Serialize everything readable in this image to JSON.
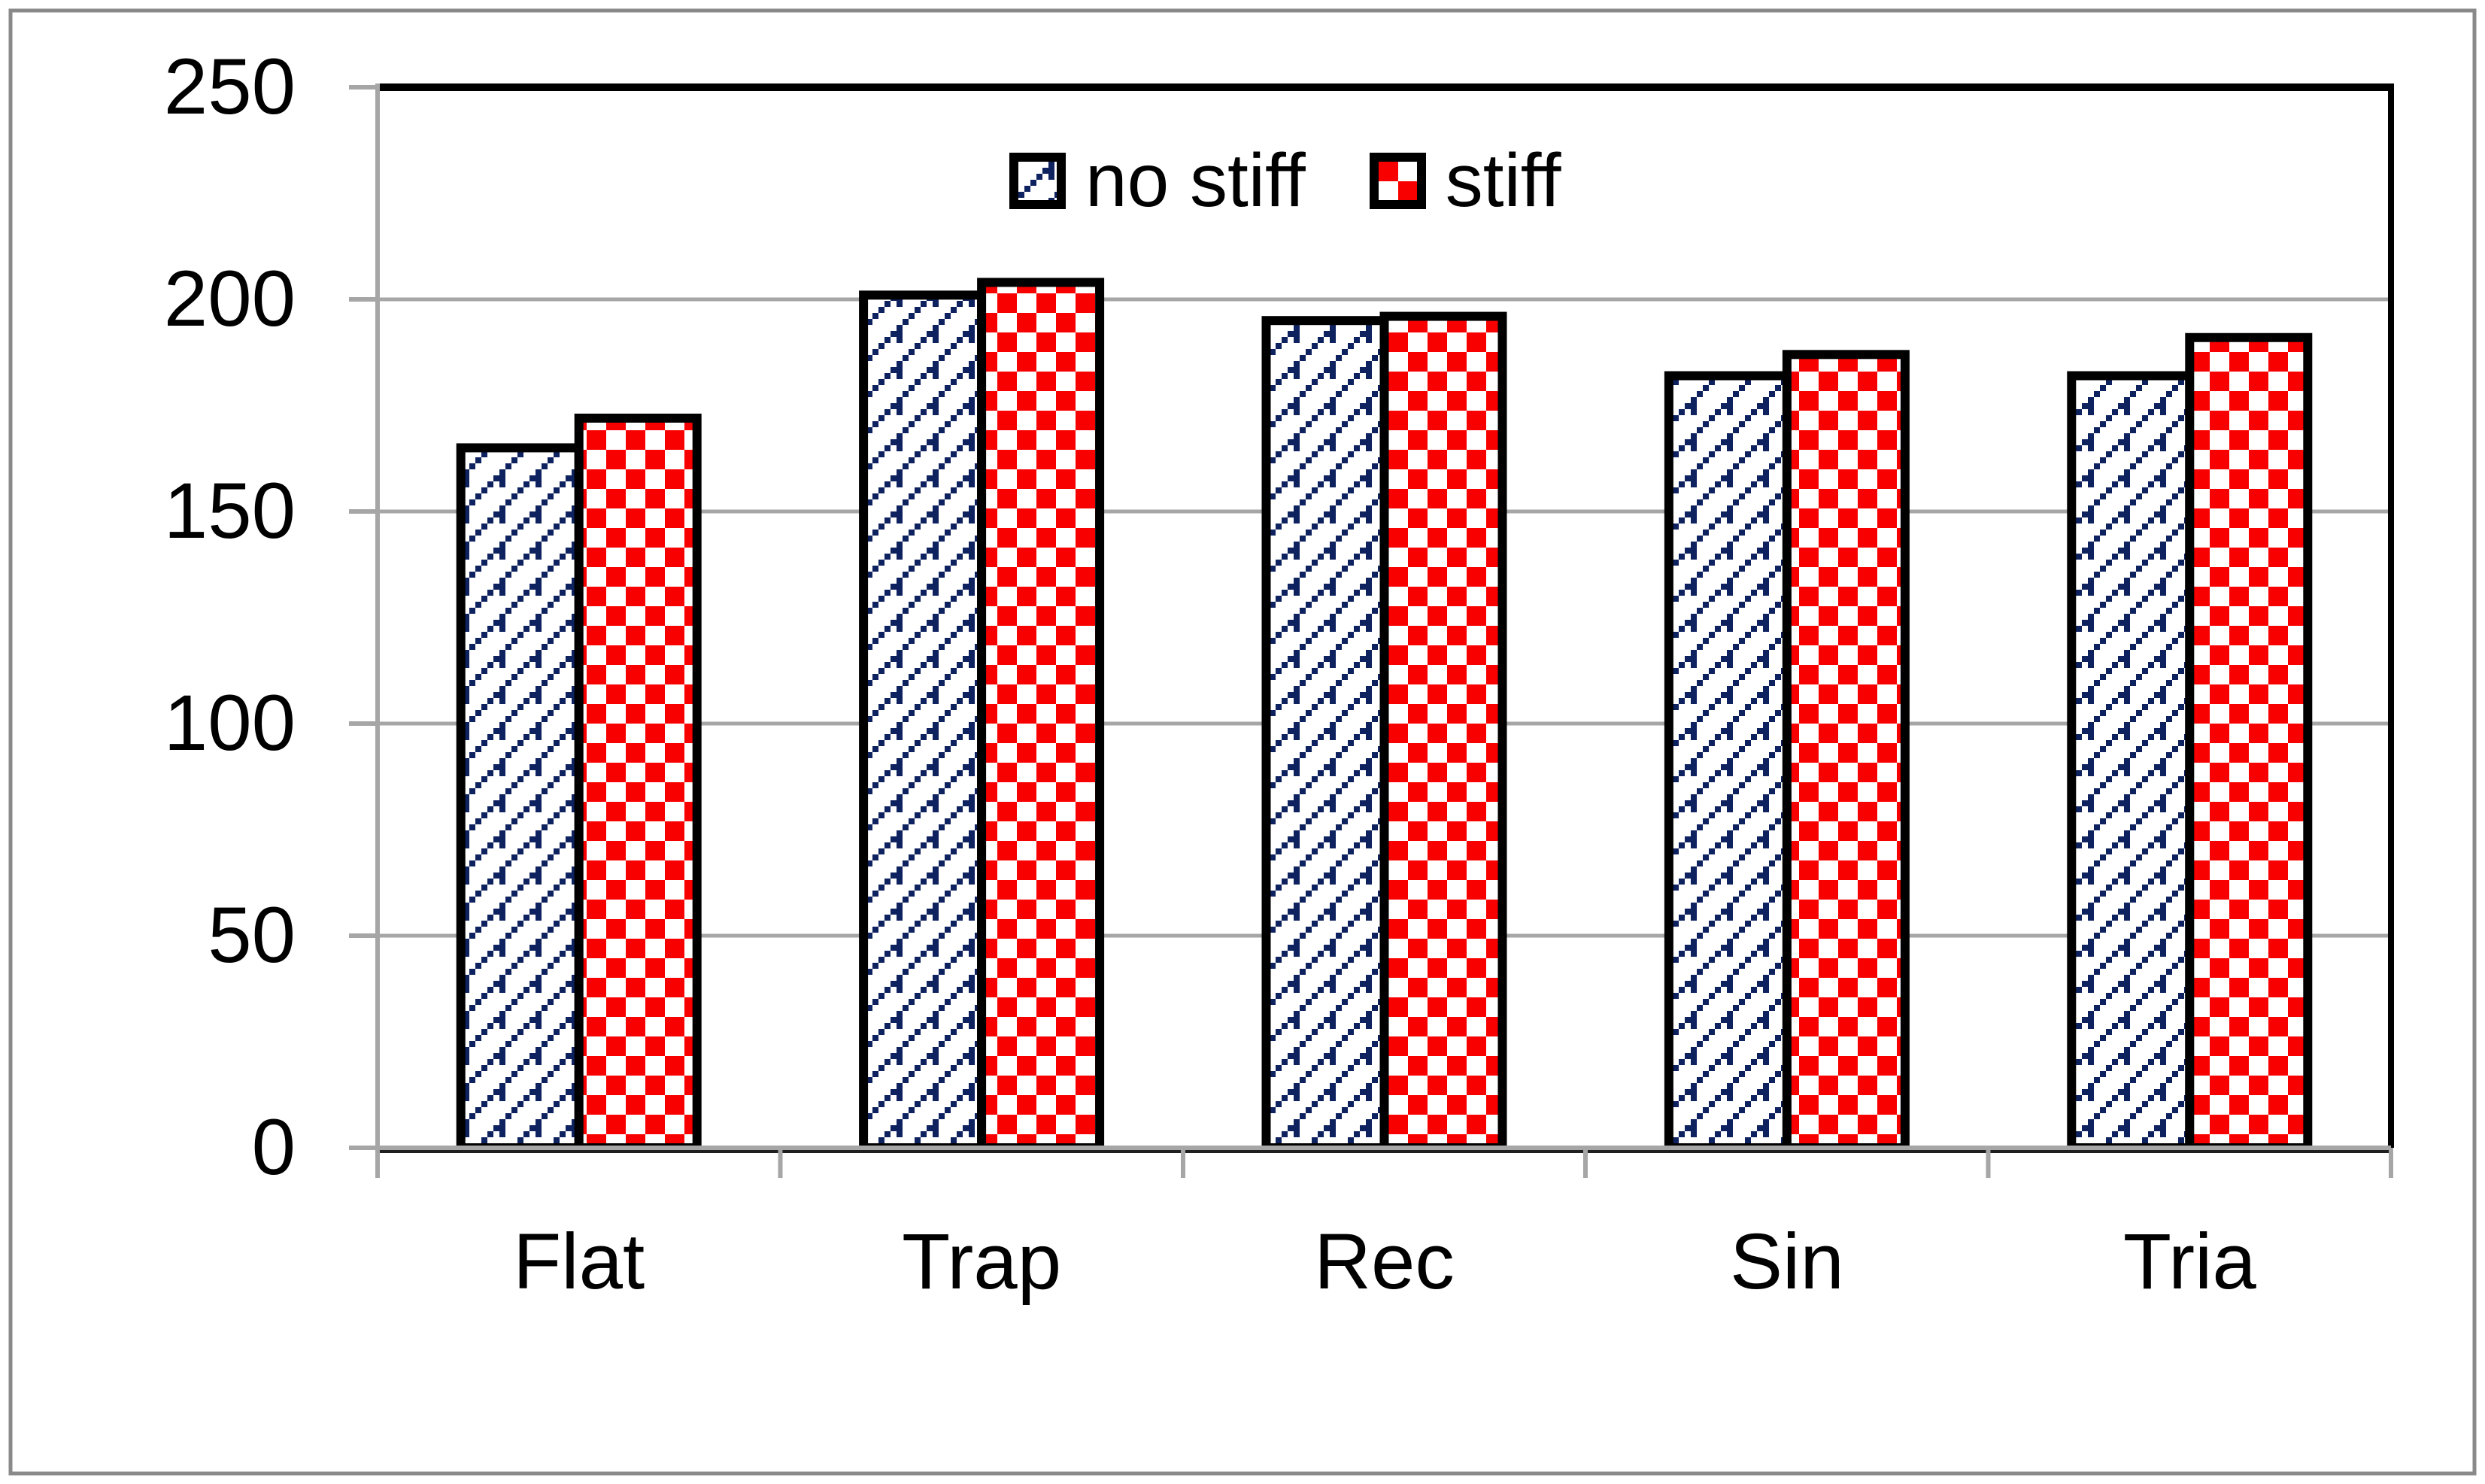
{
  "figure": {
    "background": "#ffffff",
    "frame_color": "#898989"
  },
  "legend": {
    "position": "top-center",
    "items": [
      {
        "label": "no stiff",
        "swatch": "navy-diagonal-shingle-pattern",
        "color": "#0e2260"
      },
      {
        "label": "stiff",
        "swatch": "red-checkerboard-pattern",
        "color": "#f80000"
      }
    ]
  },
  "chart_data": {
    "type": "bar",
    "title": "",
    "categories": [
      "Flat",
      "Trap",
      "Rec",
      "Sin",
      "Tria"
    ],
    "series": [
      {
        "name": "no stiff",
        "pattern": "diagonal-shingle",
        "color": "#0e2260",
        "values": [
          165,
          201,
          195,
          182,
          182
        ]
      },
      {
        "name": "stiff",
        "pattern": "checkerboard",
        "color": "#f80000",
        "values": [
          172,
          204,
          196,
          187,
          191
        ]
      }
    ],
    "xlabel": "",
    "ylabel": "",
    "ylim": [
      0,
      250
    ],
    "yticks": [
      0,
      50,
      100,
      150,
      200,
      250
    ],
    "grid": "horizontal",
    "grid_color": "#a6a6a6",
    "axis_color": "#a6a6a6",
    "plot_border_color": "#000000",
    "legend_position": "top-center"
  }
}
